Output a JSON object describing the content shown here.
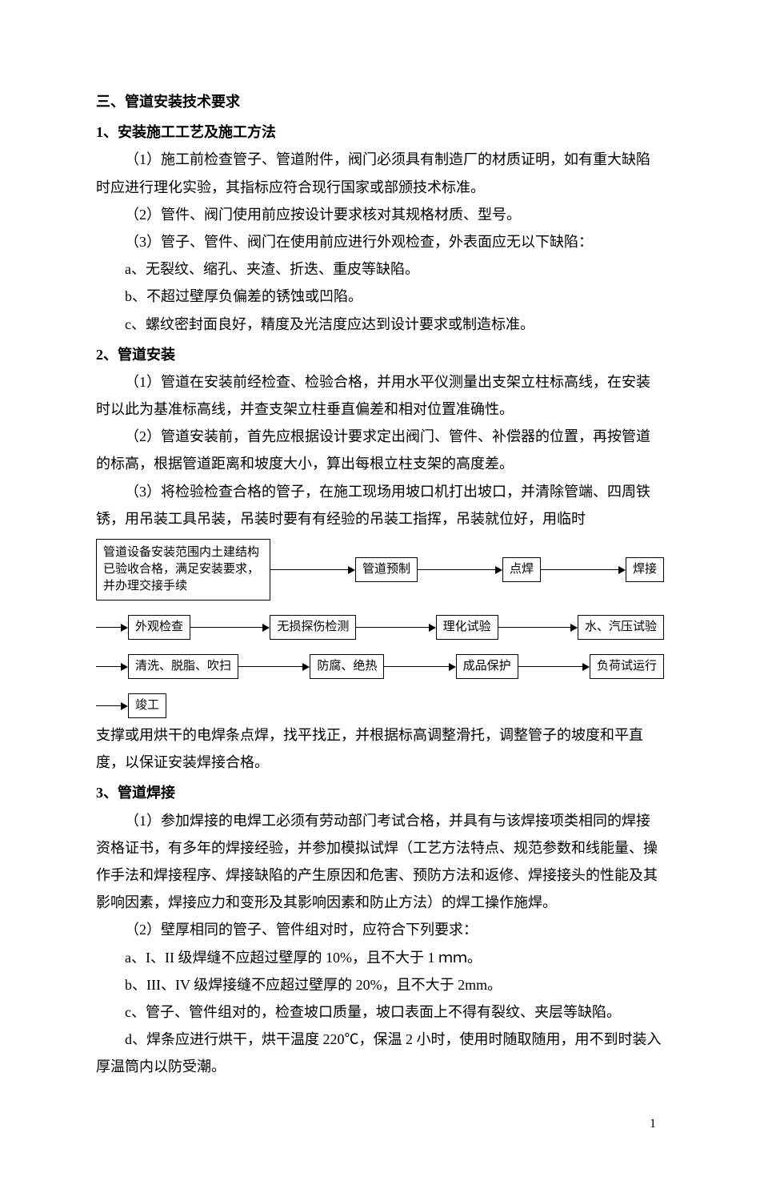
{
  "section3": {
    "title": "三、管道安装技术要求",
    "sub1": {
      "title": "1、安装施工工艺及施工方法",
      "p1": "（1）施工前检查管子、管道附件，阀门必须具有制造厂的材质证明，如有重大缺陷时应进行理化实验，其指标应符合现行国家或部颁技术标准。",
      "p2": "（2）管件、阀门使用前应按设计要求核对其规格材质、型号。",
      "p3": "（3）管子、管件、阀门在使用前应进行外观检查，外表面应无以下缺陷：",
      "p4": "a、无裂纹、缩孔、夹渣、折迭、重皮等缺陷。",
      "p5": "b、不超过壁厚负偏差的锈蚀或凹陷。",
      "p6": "c、螺纹密封面良好，精度及光洁度应达到设计要求或制造标准。"
    },
    "sub2": {
      "title": "2、管道安装",
      "p1": "（1）管道在安装前经检查、检验合格，并用水平仪测量出支架立柱标高线，在安装时以此为基准标高线，并查支架立柱垂直偏差和相对位置准确性。",
      "p2": "（2）管道安装前，首先应根据设计要求定出阀门、管件、补偿器的位置，再按管道的标高，根据管道距离和坡度大小，算出每根立柱支架的高度差。",
      "p3": "（3）将检验检查合格的管子，在施工现场用坡口机打出坡口，并清除管端、四周铁锈，用吊装工具吊装，吊装时要有有经验的吊装工指挥，吊装就位好，用临时",
      "p4": "支撑或用烘干的电焊条点焊，找平找正，并根据标高调整滑托，调整管子的坡度和平直度，以保证安装焊接合格。"
    },
    "flow": {
      "r1b1": "管道设备安装范围内土建结构已验收合格，满足安装要求，并办理交接手续",
      "r1b2": "管道预制",
      "r1b3": "点焊",
      "r1b4": "焊接",
      "r2b1": "外观检查",
      "r2b2": "无损探伤检测",
      "r2b3": "理化试验",
      "r2b4": "水、汽压试验",
      "r3b1": "清洗、脱脂、吹扫",
      "r3b2": "防腐、绝热",
      "r3b3": "成品保护",
      "r3b4": "负荷试运行",
      "r4b1": "竣工"
    },
    "sub3": {
      "title": "3、管道焊接",
      "p1": "（1）参加焊接的电焊工必须有劳动部门考试合格，并具有与该焊接项类相同的焊接资格证书，有多年的焊接经验，并参加模拟试焊（工艺方法特点、规范参数和线能量、操作手法和焊接程序、焊接缺陷的产生原因和危害、预防方法和返修、焊接接头的性能及其影响因素，焊接应力和变形及其影响因素和防止方法）的焊工操作施焊。",
      "p2": "（2）壁厚相同的管子、管件组对时，应符合下列要求：",
      "p3": "a、I、II 级焊缝不应超过壁厚的 10%，且不大于 1 ｍｍ。",
      "p4": "b、III、IV 级焊接缝不应超过壁厚的 20%，且不大于 2mm。",
      "p5": "c、管子、管件组对的，检查坡口质量，坡口表面上不得有裂纹、夹层等缺陷。",
      "p6": "d、焊条应进行烘干，烘干温度 220℃，保温 2 小时，使用时随取随用，用不到时装入厚温筒内以防受潮。"
    }
  },
  "pagenum": "1"
}
